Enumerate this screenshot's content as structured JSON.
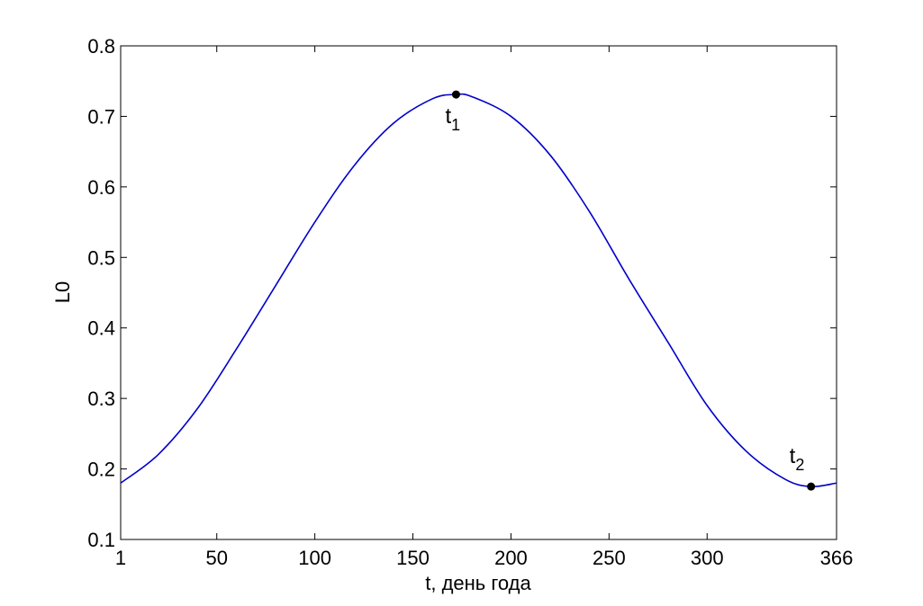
{
  "chart_data": {
    "type": "line",
    "title": "",
    "xlabel": "t, день года",
    "ylabel": "L0",
    "xlim": [
      1,
      366
    ],
    "ylim": [
      0.1,
      0.8
    ],
    "xticks": [
      1,
      50,
      100,
      150,
      200,
      250,
      300,
      366
    ],
    "xtick_labels": [
      "1",
      "50",
      "100",
      "150",
      "200",
      "250",
      "300",
      "366"
    ],
    "yticks": [
      0.1,
      0.2,
      0.3,
      0.4,
      0.5,
      0.6,
      0.7,
      0.8
    ],
    "ytick_labels": [
      "0.1",
      "0.2",
      "0.3",
      "0.4",
      "0.5",
      "0.6",
      "0.7",
      "0.8"
    ],
    "grid": false,
    "line_color": "#0000cc",
    "marker_color": "#000000",
    "series": [
      {
        "x": [
          1,
          20,
          40,
          60,
          80,
          100,
          120,
          140,
          160,
          172,
          180,
          200,
          220,
          240,
          260,
          280,
          300,
          320,
          340,
          353,
          366
        ],
        "y": [
          0.18,
          0.22,
          0.285,
          0.37,
          0.46,
          0.55,
          0.63,
          0.69,
          0.725,
          0.731,
          0.728,
          0.7,
          0.645,
          0.565,
          0.47,
          0.38,
          0.29,
          0.225,
          0.185,
          0.175,
          0.18
        ]
      }
    ],
    "annotations": [
      {
        "x": 172,
        "y": 0.731,
        "label": "t",
        "subscript": "1",
        "placement": "below"
      },
      {
        "x": 353,
        "y": 0.175,
        "label": "t",
        "subscript": "2",
        "placement": "above-left"
      }
    ]
  }
}
